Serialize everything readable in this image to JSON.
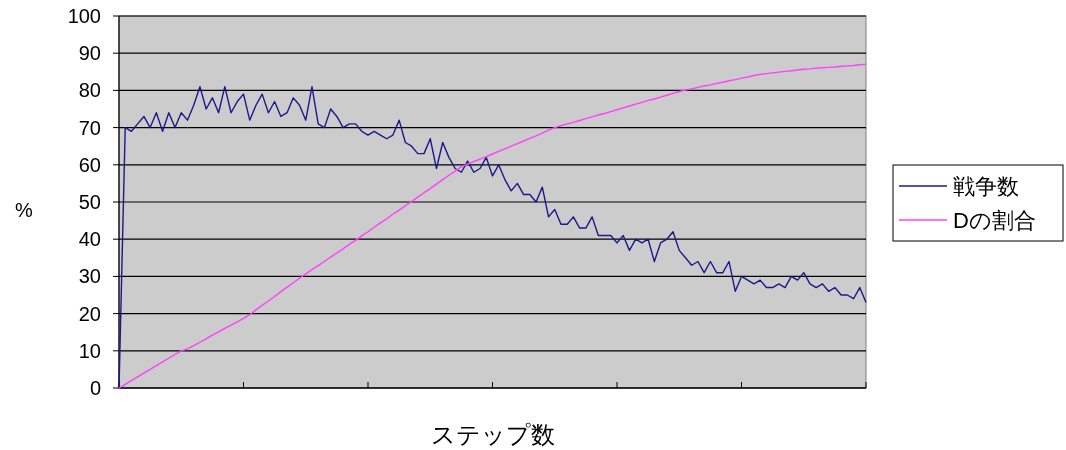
{
  "chart_data": {
    "type": "line",
    "xlabel": "ステップ数",
    "ylabel": "%",
    "categories": [
      null,
      null,
      null,
      null,
      null,
      null,
      null,
      null,
      null,
      null,
      null,
      null,
      null,
      null,
      null,
      null,
      null,
      null,
      null,
      null,
      null,
      null,
      null,
      null,
      null,
      null,
      null,
      null,
      null,
      null,
      null,
      null,
      null,
      null,
      null,
      null,
      null,
      null,
      null,
      null,
      null,
      null,
      null,
      null,
      null,
      null,
      null,
      null,
      null,
      null,
      null,
      null,
      null,
      null,
      null,
      null,
      null,
      null,
      null,
      null,
      null,
      null,
      null,
      null,
      null,
      null,
      null,
      null,
      null,
      null,
      null,
      null,
      null,
      null,
      null,
      null,
      null,
      null,
      null,
      null,
      null,
      null,
      null,
      null,
      null,
      null,
      null,
      null,
      null,
      null,
      null,
      null,
      null,
      null,
      null,
      null,
      null,
      null,
      null,
      null,
      null,
      null,
      null,
      null,
      null,
      null,
      null,
      null,
      null,
      null,
      null,
      null,
      null,
      null,
      null,
      null,
      null,
      null,
      null,
      null,
      null
    ],
    "ylim": [
      0,
      100
    ],
    "yticks": [
      0,
      10,
      20,
      30,
      40,
      50,
      60,
      70,
      80,
      90,
      100
    ],
    "grid": "y",
    "legend": "right",
    "series": [
      {
        "name": "戦争数",
        "color": "#1a1a8c",
        "values": [
          0,
          70,
          69,
          71,
          73,
          70,
          74,
          69,
          74,
          70,
          74,
          72,
          76,
          81,
          75,
          78,
          74,
          81,
          74,
          77,
          79,
          72,
          76,
          79,
          74,
          77,
          73,
          74,
          78,
          76,
          72,
          81,
          71,
          70,
          75,
          73,
          70,
          71,
          71,
          69,
          68,
          69,
          68,
          67,
          68,
          72,
          66,
          65,
          63,
          63,
          67,
          59,
          66,
          62,
          59,
          58,
          61,
          58,
          59,
          62,
          57,
          60,
          56,
          53,
          55,
          52,
          52,
          50,
          54,
          46,
          48,
          44,
          44,
          46,
          43,
          43,
          46,
          41,
          41,
          41,
          39,
          41,
          37,
          40,
          39,
          40,
          34,
          39,
          40,
          42,
          37,
          35,
          33,
          34,
          31,
          34,
          31,
          31,
          34,
          26,
          30,
          29,
          28,
          29,
          27,
          27,
          28,
          27,
          30,
          29,
          31,
          28,
          27,
          28,
          26,
          27,
          25,
          25,
          24,
          27,
          23
        ]
      },
      {
        "name": "Dの割合",
        "color": "#ff40ff",
        "values": [
          0,
          1,
          2,
          3,
          4,
          5,
          6,
          7,
          8,
          9,
          10,
          10.5,
          11.4,
          12.3,
          13.2,
          14.2,
          15.1,
          16,
          16.9,
          17.8,
          18.7,
          19.7,
          21,
          22.2,
          23.4,
          24.6,
          25.9,
          27.1,
          28.3,
          29.5,
          30.7,
          31.8,
          32.9,
          34,
          35.2,
          36.3,
          37.4,
          38.6,
          39.7,
          40.9,
          42,
          43.2,
          44.4,
          45.5,
          46.7,
          47.8,
          49,
          50.1,
          51.3,
          52.5,
          53.6,
          54.8,
          56,
          57.2,
          58.3,
          59.5,
          60.2,
          60.9,
          61.5,
          62.2,
          62.9,
          63.6,
          64.3,
          65,
          65.7,
          66.4,
          67.1,
          67.8,
          68.5,
          69.3,
          70,
          70.5,
          71,
          71.4,
          71.9,
          72.4,
          72.9,
          73.4,
          73.8,
          74.3,
          74.8,
          75.3,
          75.8,
          76.3,
          76.8,
          77.3,
          77.7,
          78.2,
          78.7,
          79.2,
          79.7,
          80.1,
          80.4,
          80.8,
          81.2,
          81.5,
          81.9,
          82.2,
          82.6,
          82.9,
          83.3,
          83.6,
          84,
          84.3,
          84.5,
          84.7,
          84.9,
          85.1,
          85.3,
          85.5,
          85.7,
          85.8,
          86,
          86.1,
          86.2,
          86.3,
          86.5,
          86.6,
          86.7,
          86.9,
          87
        ]
      }
    ]
  }
}
